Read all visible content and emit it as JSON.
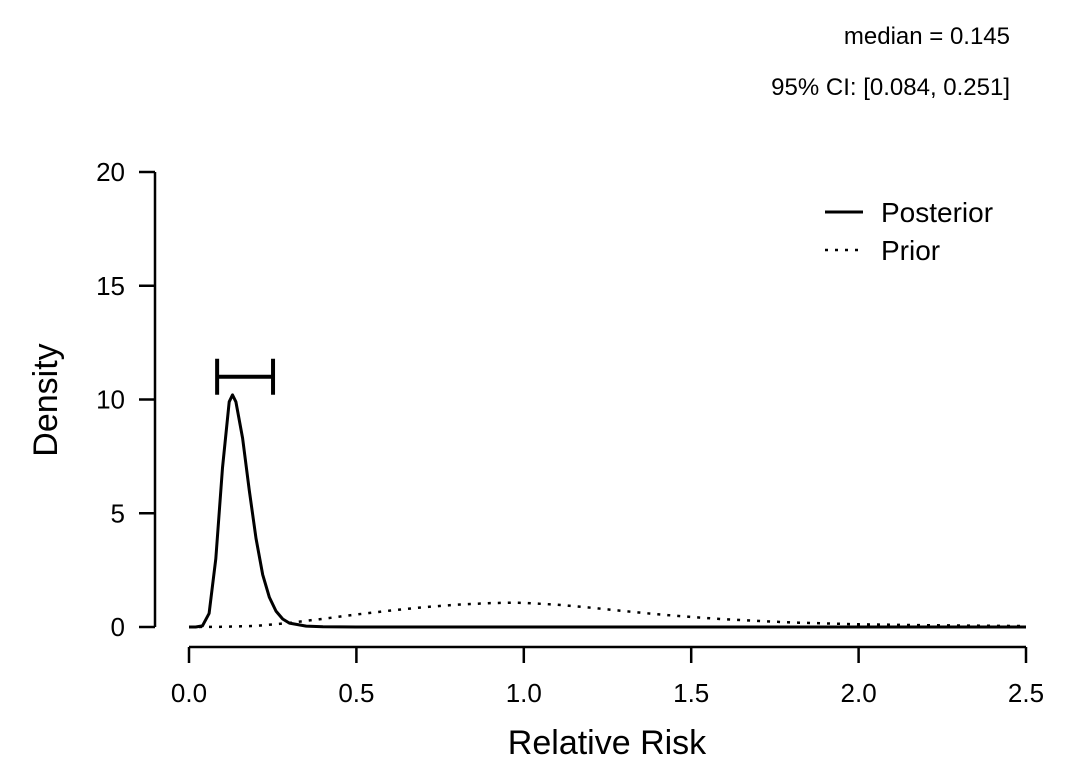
{
  "annotations": {
    "median": "median = 0.145",
    "ci": "95% CI: [0.084, 0.251]"
  },
  "chart_data": {
    "type": "line",
    "xlabel": "Relative Risk",
    "ylabel": "Density",
    "xlim": [
      0,
      2.5
    ],
    "ylim": [
      0,
      20
    ],
    "x_ticks": [
      "0.0",
      "0.5",
      "1.0",
      "1.5",
      "2.0",
      "2.5"
    ],
    "y_ticks": [
      "0",
      "5",
      "10",
      "15",
      "20"
    ],
    "grid": false,
    "legend_position": "top-right",
    "series": [
      {
        "name": "Posterior",
        "line_style": "solid",
        "x": [
          0.0,
          0.02,
          0.04,
          0.06,
          0.08,
          0.1,
          0.12,
          0.13,
          0.14,
          0.16,
          0.18,
          0.2,
          0.22,
          0.24,
          0.26,
          0.28,
          0.3,
          0.35,
          0.4,
          0.5,
          1.0,
          1.5,
          2.0,
          2.5
        ],
        "y": [
          0.0,
          0.0,
          0.05,
          0.6,
          3.0,
          7.0,
          9.9,
          10.2,
          9.9,
          8.3,
          6.0,
          3.9,
          2.3,
          1.3,
          0.7,
          0.35,
          0.17,
          0.04,
          0.01,
          0.0,
          0.0,
          0.0,
          0.0,
          0.0
        ]
      },
      {
        "name": "Prior",
        "line_style": "dotted",
        "x": [
          0.0,
          0.1,
          0.2,
          0.3,
          0.4,
          0.5,
          0.6,
          0.7,
          0.8,
          0.9,
          0.97,
          1.0,
          1.1,
          1.2,
          1.3,
          1.4,
          1.5,
          1.6,
          1.8,
          2.0,
          2.2,
          2.5
        ],
        "y": [
          0.0,
          0.01,
          0.05,
          0.18,
          0.36,
          0.55,
          0.72,
          0.87,
          0.98,
          1.05,
          1.07,
          1.06,
          0.98,
          0.85,
          0.7,
          0.56,
          0.44,
          0.34,
          0.2,
          0.12,
          0.08,
          0.04
        ]
      }
    ],
    "interval": {
      "lower": 0.084,
      "upper": 0.251,
      "y": 11.0
    }
  }
}
